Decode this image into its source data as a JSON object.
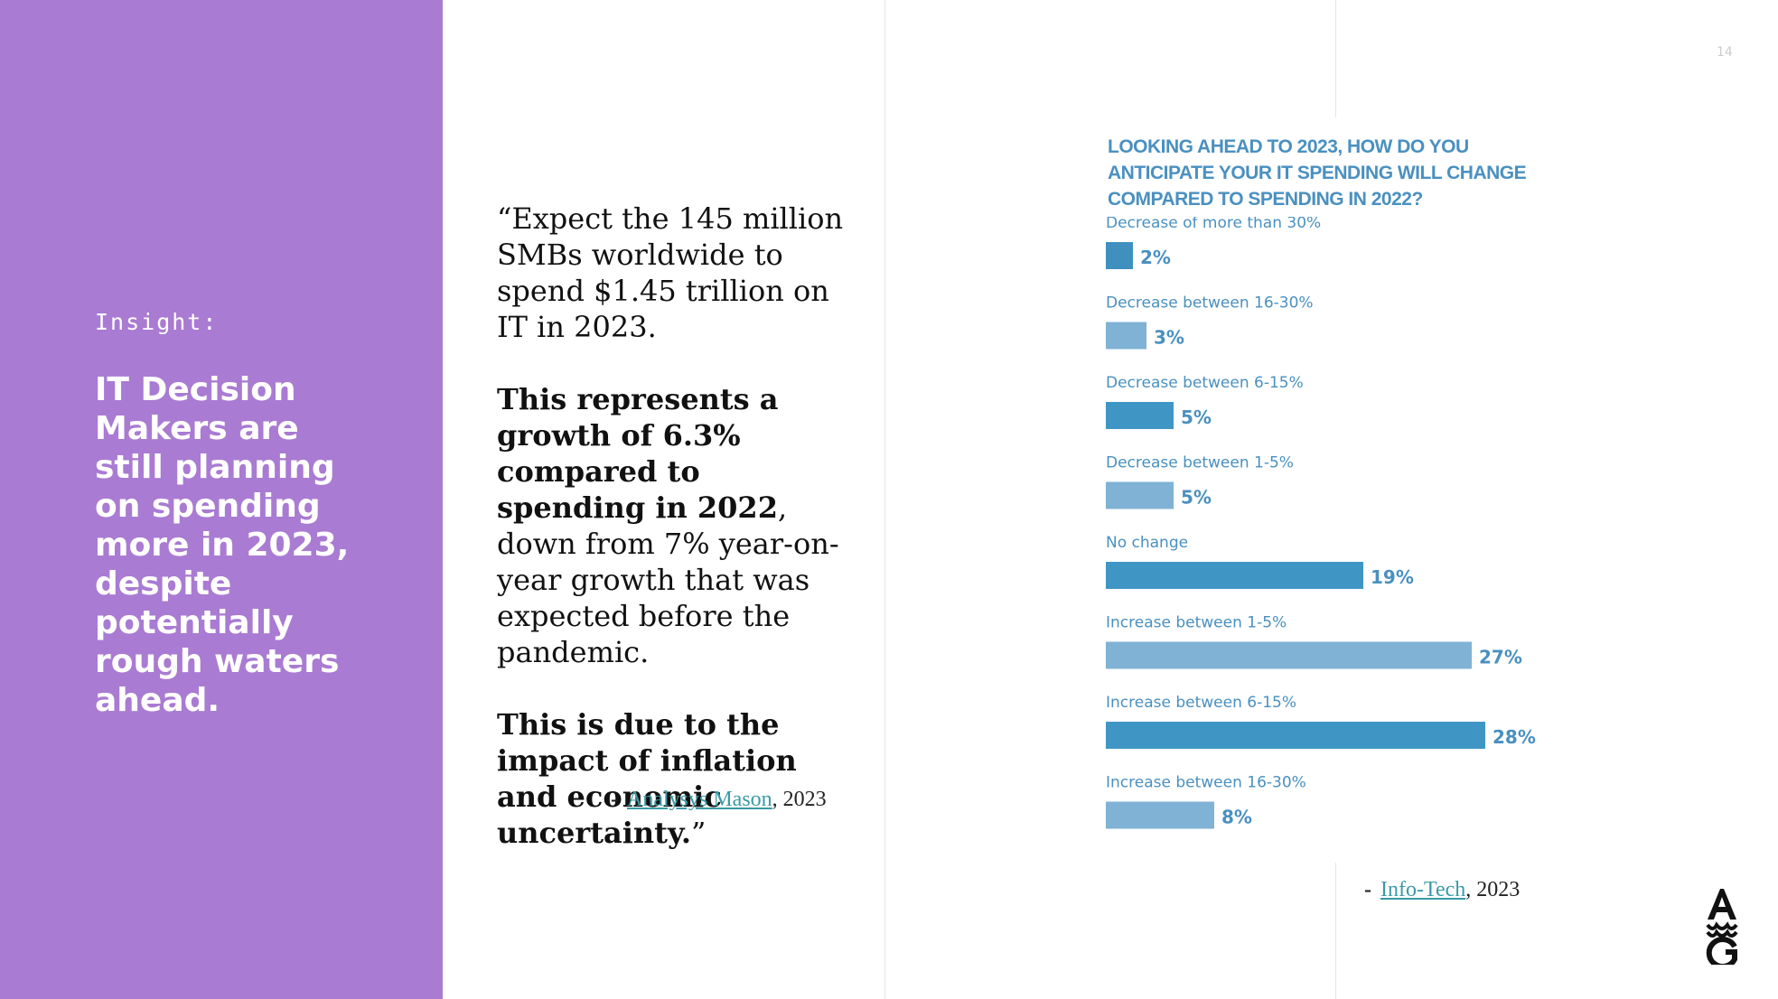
{
  "left_panel": {
    "label": "Insight:",
    "heading": "IT Decision Makers are still planning on spending more in 2023, despite potentially rough waters ahead."
  },
  "quote": {
    "p1": "“Expect the 145 million SMBs worldwide to spend $1.45 trillion on IT in 2023.",
    "p2_bold": "This represents a growth of 6.3% compared to spending in 2022",
    "p2_rest": ", down from 7% year-on-year growth that was expected before the pandemic.",
    "p3_bold": "This is due to the impact of inflation and economic uncertainty.",
    "p3_close": "”",
    "source_dash": "-",
    "source_link": "Analysys Mason",
    "source_year": ", 2023"
  },
  "chart_data": {
    "type": "bar",
    "orientation": "horizontal",
    "title": "LOOKING AHEAD TO 2023, HOW DO YOU ANTICIPATE YOUR IT SPENDING WILL CHANGE COMPARED TO SPENDING IN 2022?",
    "categories": [
      "Decrease of more than 30%",
      "Decrease between 16-30%",
      "Decrease between 6-15%",
      "Decrease between 1-5%",
      "No change",
      "Increase between 1-5%",
      "Increase between 6-15%",
      "Increase between 16-30%"
    ],
    "values": [
      2,
      3,
      5,
      5,
      19,
      27,
      28,
      8
    ],
    "value_labels": [
      "2%",
      "3%",
      "5%",
      "5%",
      "19%",
      "27%",
      "28%",
      "8%"
    ],
    "colors": [
      "#3f8fbf",
      "#7fb2d4",
      "#3f96c4",
      "#7fb2d4",
      "#3f96c4",
      "#7fb2d4",
      "#3f96c4",
      "#7fb2d4"
    ],
    "xlim": [
      0,
      28
    ]
  },
  "chart_source": {
    "dash": "-",
    "link": "Info-Tech",
    "year": ", 2023"
  },
  "page_number": "14",
  "logo": {
    "text": "AWG"
  }
}
